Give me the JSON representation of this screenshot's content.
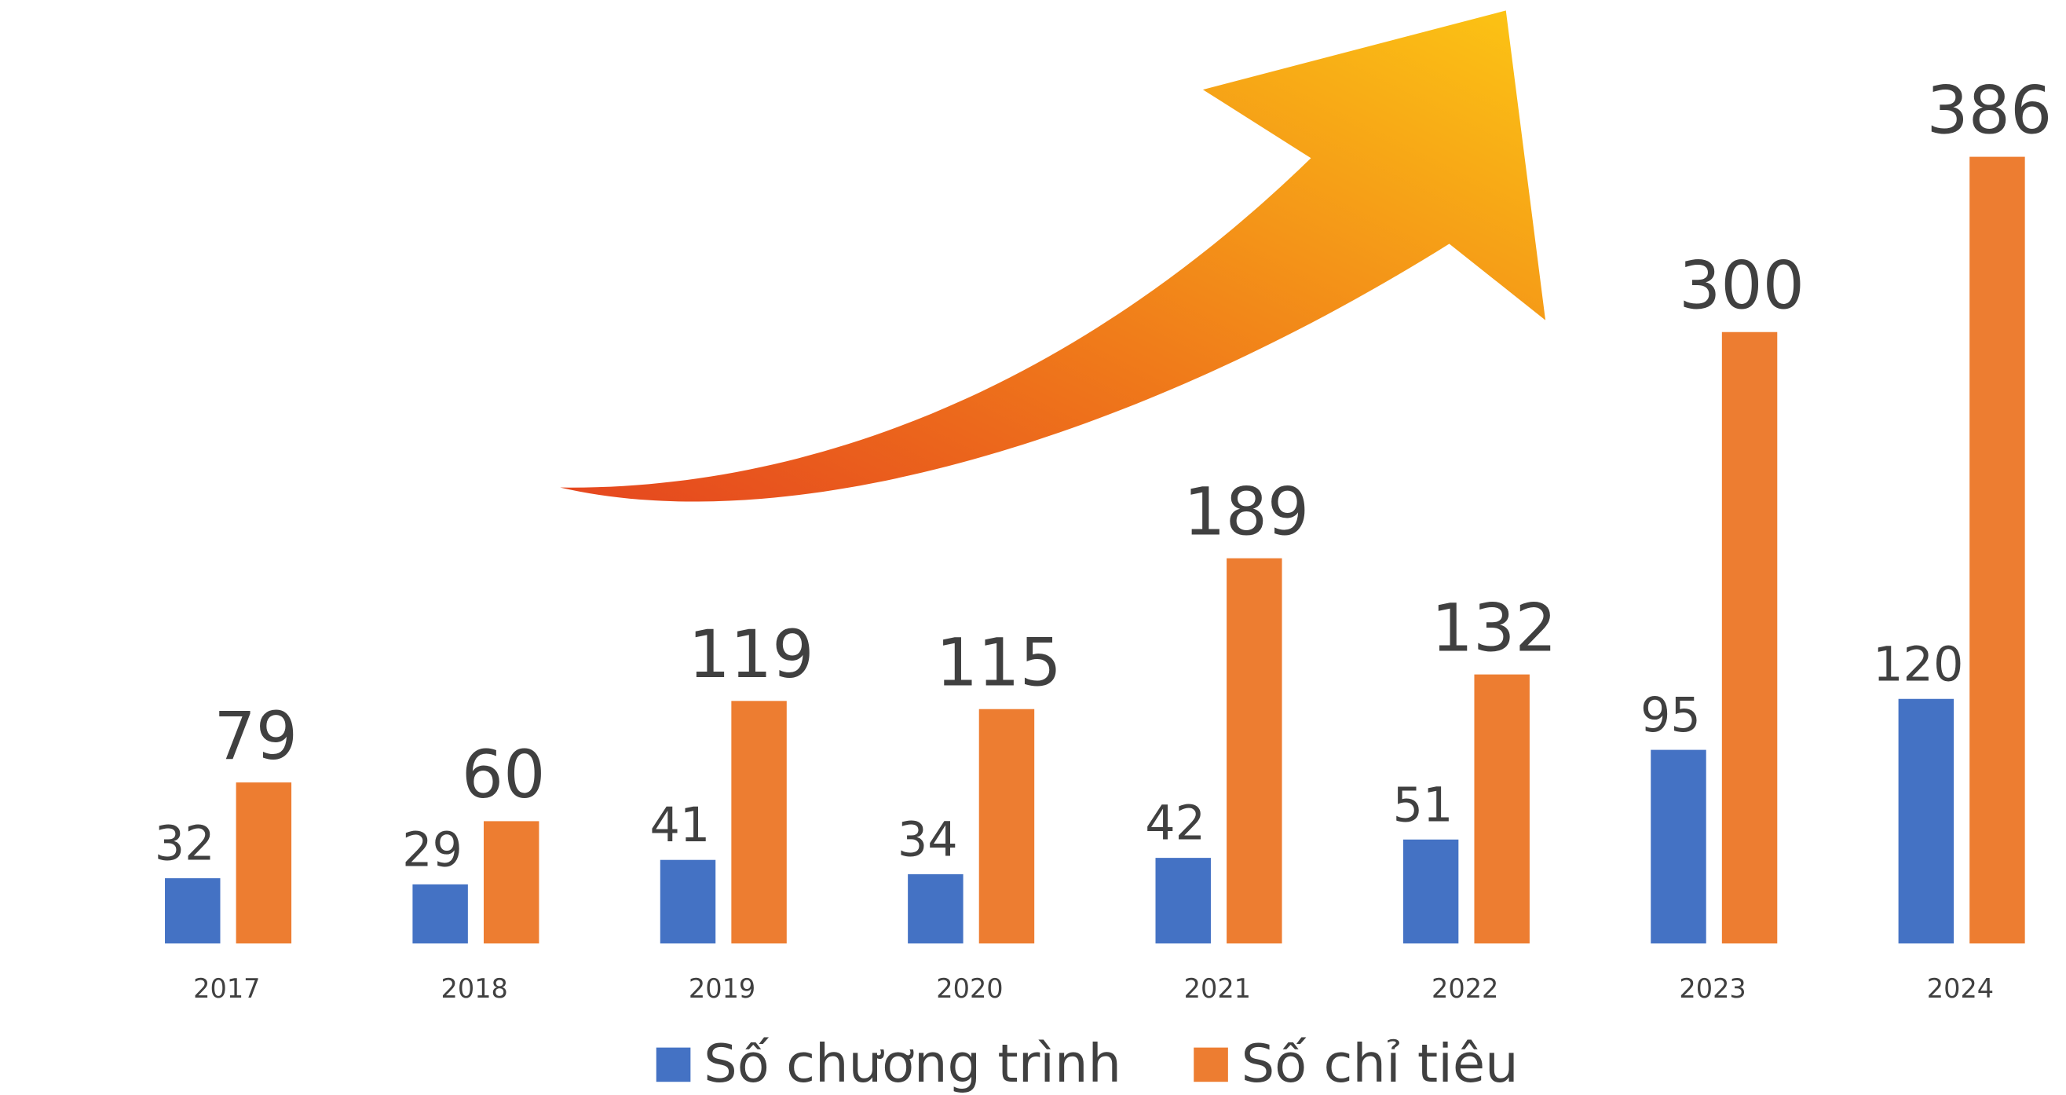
{
  "chart_data": {
    "type": "bar",
    "categories": [
      "2017",
      "2018",
      "2019",
      "2020",
      "2021",
      "2022",
      "2023",
      "2024"
    ],
    "series": [
      {
        "name": "Số chương trình",
        "color": "#4472c4",
        "values": [
          32,
          29,
          41,
          34,
          42,
          51,
          95,
          120
        ]
      },
      {
        "name": "Số chỉ tiêu",
        "color": "#ed7d31",
        "values": [
          79,
          60,
          119,
          115,
          189,
          132,
          300,
          386
        ]
      }
    ],
    "ylim": [
      0,
      450
    ],
    "yticks": [
      0,
      50,
      100,
      150,
      200,
      250,
      300,
      350,
      400,
      450
    ],
    "grid": true,
    "legend": "bottom"
  }
}
